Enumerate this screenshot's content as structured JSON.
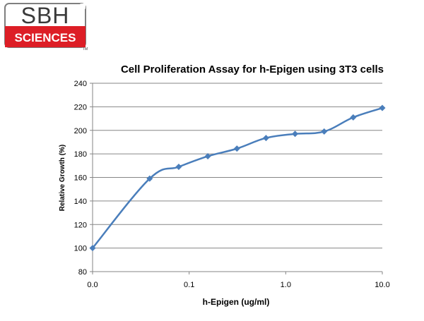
{
  "logo": {
    "top_text": "SBH",
    "bottom_text": "SCIENCES",
    "trademark": "TM",
    "colors": {
      "red": "#dd1e26",
      "outline": "#7f7f7f",
      "text_dark": "#3a3a3a"
    }
  },
  "chart_data": {
    "type": "line",
    "title": "Cell Proliferation Assay for h-Epigen using 3T3 cells",
    "xlabel": "h-Epigen (ug/ml)",
    "ylabel": "Relative Growth (%)",
    "xscale": "log",
    "xlim": [
      0.01,
      10
    ],
    "xticks": [
      {
        "value": 0.01,
        "label": "0.0"
      },
      {
        "value": 0.1,
        "label": "0.1"
      },
      {
        "value": 1,
        "label": "1.0"
      },
      {
        "value": 10,
        "label": "10.0"
      }
    ],
    "ylim": [
      80,
      240
    ],
    "yticks": [
      80,
      100,
      120,
      140,
      160,
      180,
      200,
      220,
      240
    ],
    "grid": true,
    "legend": "none",
    "series": [
      {
        "color": "#4a7ebb",
        "marker": "diamond",
        "points": [
          {
            "x": 0.01,
            "y": 100
          },
          {
            "x": 0.039,
            "y": 159
          },
          {
            "x": 0.078,
            "y": 169
          },
          {
            "x": 0.156,
            "y": 178
          },
          {
            "x": 0.3125,
            "y": 184.5
          },
          {
            "x": 0.625,
            "y": 193.5
          },
          {
            "x": 1.25,
            "y": 197
          },
          {
            "x": 2.5,
            "y": 199
          },
          {
            "x": 5,
            "y": 211
          },
          {
            "x": 10,
            "y": 219
          }
        ]
      }
    ]
  }
}
